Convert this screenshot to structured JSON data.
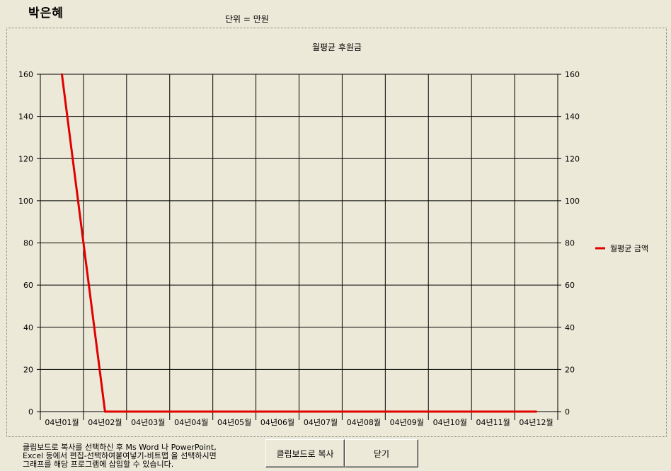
{
  "window": {
    "title": "박은혜",
    "unit_label": "단위 = 만원"
  },
  "footer": {
    "hint": "클립보드로 복사를 선택하신 후 Ms Word 나 PowerPoint,\nExcel 등에서 편집-선택하여붙여넣기-비트맵  을 선택하시면\n그래프를 해당 프로그램에 삽입할 수 있습니다.",
    "copy_button": "클립보드로 복사",
    "close_button": "닫기"
  },
  "chart_data": {
    "type": "line",
    "title": "월평균 후원금",
    "categories": [
      "04년01월",
      "04년02월",
      "04년03월",
      "04년04월",
      "04년05월",
      "04년06월",
      "04년07월",
      "04년08월",
      "04년09월",
      "04년10월",
      "04년11월",
      "04년12월"
    ],
    "series": [
      {
        "name": "월평균 금액",
        "color": "#e00000",
        "values": [
          160,
          0,
          0,
          0,
          0,
          0,
          0,
          0,
          0,
          0,
          0,
          0
        ]
      }
    ],
    "ylim": [
      0,
      160
    ],
    "yticks": [
      0,
      20,
      40,
      60,
      80,
      100,
      120,
      140,
      160
    ],
    "secondary_y_axis": true,
    "grid": true,
    "legend_position": "right",
    "xlabel": "",
    "ylabel": ""
  }
}
